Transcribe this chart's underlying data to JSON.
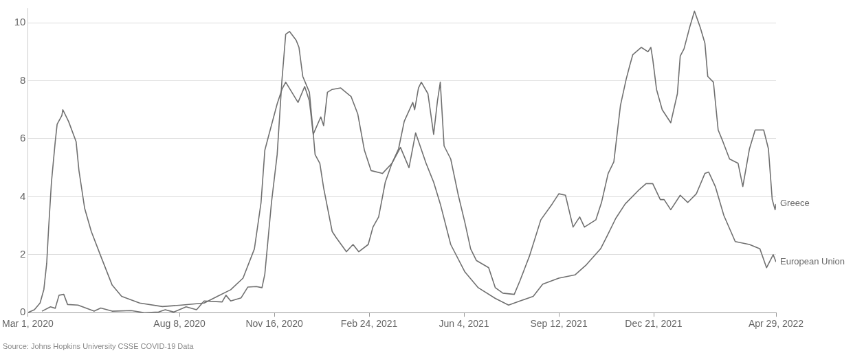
{
  "chart_data": {
    "type": "line",
    "marker": "none",
    "grid": "y",
    "xlim": [
      "2020-03-01",
      "2022-04-29"
    ],
    "ylim": [
      0,
      10.5
    ],
    "xticks": [
      {
        "value": "2020-03-01",
        "label": "Mar 1, 2020"
      },
      {
        "value": "2020-08-08",
        "label": "Aug 8, 2020"
      },
      {
        "value": "2020-11-16",
        "label": "Nov 16, 2020"
      },
      {
        "value": "2021-02-24",
        "label": "Feb 24, 2021"
      },
      {
        "value": "2021-06-04",
        "label": "Jun 4, 2021"
      },
      {
        "value": "2021-09-12",
        "label": "Sep 12, 2021"
      },
      {
        "value": "2021-12-21",
        "label": "Dec 21, 2021"
      },
      {
        "value": "2022-04-29",
        "label": "Apr 29, 2022"
      }
    ],
    "yticks": [
      0,
      2,
      4,
      6,
      8,
      10
    ],
    "annotations": [
      "Source: Johns Hopkins University CSSE COVID-19 Data"
    ],
    "series": [
      {
        "name": "Greece",
        "color": "#707070",
        "x": [
          "2020-03-16",
          "2020-03-25",
          "2020-03-30",
          "2020-04-03",
          "2020-04-08",
          "2020-04-12",
          "2020-04-23",
          "2020-05-10",
          "2020-05-17",
          "2020-05-29",
          "2020-06-18",
          "2020-07-02",
          "2020-07-17",
          "2020-07-24",
          "2020-08-02",
          "2020-08-15",
          "2020-08-26",
          "2020-09-03",
          "2020-09-22",
          "2020-09-26",
          "2020-10-01",
          "2020-10-12",
          "2020-10-19",
          "2020-10-28",
          "2020-11-03",
          "2020-11-06",
          "2020-11-13",
          "2020-11-19",
          "2020-11-24",
          "2020-11-28",
          "2020-12-02",
          "2020-12-09",
          "2020-12-12",
          "2020-12-16",
          "2020-12-23",
          "2020-12-27",
          "2020-12-29",
          "2021-01-03",
          "2021-01-07",
          "2021-01-16",
          "2021-01-20",
          "2021-01-31",
          "2021-02-07",
          "2021-02-13",
          "2021-02-23",
          "2021-02-28",
          "2021-03-06",
          "2021-03-13",
          "2021-03-20",
          "2021-03-27",
          "2021-04-02",
          "2021-04-11",
          "2021-04-13",
          "2021-04-17",
          "2021-04-20",
          "2021-04-27",
          "2021-05-03",
          "2021-05-07",
          "2021-05-10",
          "2021-05-14",
          "2021-05-21",
          "2021-05-29",
          "2021-06-05",
          "2021-06-11",
          "2021-06-17",
          "2021-06-30",
          "2021-07-07",
          "2021-07-15",
          "2021-07-27",
          "2021-08-02",
          "2021-08-12",
          "2021-08-24",
          "2021-09-05",
          "2021-09-12",
          "2021-09-19",
          "2021-09-27",
          "2021-10-04",
          "2021-10-09",
          "2021-10-21",
          "2021-10-27",
          "2021-11-03",
          "2021-11-09",
          "2021-11-16",
          "2021-11-22",
          "2021-11-26",
          "2021-11-29",
          "2021-12-08",
          "2021-12-15",
          "2021-12-18",
          "2021-12-20",
          "2021-12-24",
          "2021-12-30",
          "2022-01-08",
          "2022-01-15",
          "2022-01-18",
          "2022-01-22",
          "2022-01-28",
          "2022-02-02",
          "2022-02-08",
          "2022-02-13",
          "2022-02-16",
          "2022-02-22",
          "2022-02-27",
          "2022-03-04",
          "2022-03-11",
          "2022-03-20",
          "2022-03-25",
          "2022-04-01",
          "2022-04-07",
          "2022-04-16",
          "2022-04-21",
          "2022-04-25",
          "2022-04-28",
          "2022-04-29"
        ],
        "values": [
          0.05,
          0.2,
          0.15,
          0.6,
          0.63,
          0.28,
          0.26,
          0.05,
          0.16,
          0.05,
          0.07,
          0,
          0.02,
          0.1,
          0.02,
          0.2,
          0.1,
          0.4,
          0.37,
          0.6,
          0.4,
          0.51,
          0.88,
          0.9,
          0.86,
          1.33,
          3.8,
          5.45,
          8.0,
          9.6,
          9.7,
          9.4,
          9.15,
          8.15,
          7.6,
          6.2,
          5.45,
          5.15,
          4.3,
          2.8,
          2.6,
          2.1,
          2.35,
          2.1,
          2.35,
          2.95,
          3.3,
          4.5,
          5.15,
          5.65,
          6.6,
          7.25,
          7.0,
          7.75,
          7.95,
          7.55,
          6.15,
          7.3,
          7.95,
          5.75,
          5.3,
          4.05,
          3.1,
          2.2,
          1.8,
          1.55,
          0.86,
          0.67,
          0.63,
          1.1,
          1.95,
          3.2,
          3.75,
          4.1,
          4.05,
          2.95,
          3.3,
          2.95,
          3.2,
          3.8,
          4.8,
          5.2,
          7.15,
          8.05,
          8.55,
          8.9,
          9.15,
          9.0,
          9.15,
          8.75,
          7.7,
          7.0,
          6.55,
          7.55,
          8.85,
          9.1,
          9.85,
          10.4,
          9.85,
          9.3,
          8.15,
          7.95,
          6.3,
          5.9,
          5.3,
          5.15,
          4.35,
          5.65,
          6.3,
          6.3,
          5.65,
          3.9,
          3.55,
          3.75
        ]
      },
      {
        "name": "European Union",
        "color": "#707070",
        "x": [
          "2020-03-01",
          "2020-03-08",
          "2020-03-14",
          "2020-03-18",
          "2020-03-21",
          "2020-03-23",
          "2020-03-26",
          "2020-03-30",
          "2020-04-01",
          "2020-04-06",
          "2020-04-07",
          "2020-04-13",
          "2020-04-21",
          "2020-04-24",
          "2020-04-30",
          "2020-05-07",
          "2020-05-17",
          "2020-05-29",
          "2020-06-08",
          "2020-06-27",
          "2020-07-21",
          "2020-08-10",
          "2020-09-03",
          "2020-09-17",
          "2020-10-01",
          "2020-10-14",
          "2020-10-26",
          "2020-11-02",
          "2020-11-06",
          "2020-11-10",
          "2020-11-19",
          "2020-11-24",
          "2020-11-28",
          "2020-12-11",
          "2020-12-18",
          "2020-12-23",
          "2020-12-27",
          "2021-01-04",
          "2021-01-07",
          "2021-01-11",
          "2021-01-16",
          "2021-01-25",
          "2021-02-05",
          "2021-02-12",
          "2021-02-19",
          "2021-02-26",
          "2021-03-10",
          "2021-03-20",
          "2021-03-29",
          "2021-04-07",
          "2021-04-14",
          "2021-04-25",
          "2021-05-03",
          "2021-05-10",
          "2021-05-21",
          "2021-06-05",
          "2021-06-19",
          "2021-07-07",
          "2021-07-21",
          "2021-08-02",
          "2021-08-16",
          "2021-08-26",
          "2021-09-12",
          "2021-09-29",
          "2021-10-11",
          "2021-10-26",
          "2021-11-02",
          "2021-11-11",
          "2021-11-21",
          "2021-12-06",
          "2021-12-13",
          "2021-12-20",
          "2021-12-28",
          "2022-01-01",
          "2022-01-08",
          "2022-01-18",
          "2022-01-26",
          "2022-02-04",
          "2022-02-13",
          "2022-02-17",
          "2022-02-24",
          "2022-03-05",
          "2022-03-17",
          "2022-04-01",
          "2022-04-12",
          "2022-04-19",
          "2022-04-26",
          "2022-04-29"
        ],
        "values": [
          0,
          0.1,
          0.33,
          0.8,
          1.7,
          2.9,
          4.5,
          5.9,
          6.5,
          6.8,
          7.0,
          6.6,
          5.9,
          4.9,
          3.6,
          2.8,
          1.95,
          0.95,
          0.56,
          0.33,
          0.21,
          0.26,
          0.33,
          0.56,
          0.79,
          1.19,
          2.2,
          3.8,
          5.6,
          6.1,
          7.2,
          7.7,
          7.95,
          7.25,
          7.8,
          7.3,
          6.15,
          6.75,
          6.45,
          7.6,
          7.7,
          7.75,
          7.45,
          6.85,
          5.6,
          4.9,
          4.8,
          5.15,
          5.7,
          5.0,
          6.2,
          5.15,
          4.5,
          3.75,
          2.35,
          1.4,
          0.86,
          0.49,
          0.26,
          0.4,
          0.56,
          0.98,
          1.19,
          1.3,
          1.65,
          2.2,
          2.65,
          3.25,
          3.75,
          4.25,
          4.45,
          4.45,
          3.9,
          3.9,
          3.55,
          4.05,
          3.8,
          4.1,
          4.8,
          4.85,
          4.35,
          3.35,
          2.45,
          2.35,
          2.2,
          1.55,
          2.0,
          1.75
        ]
      }
    ]
  }
}
